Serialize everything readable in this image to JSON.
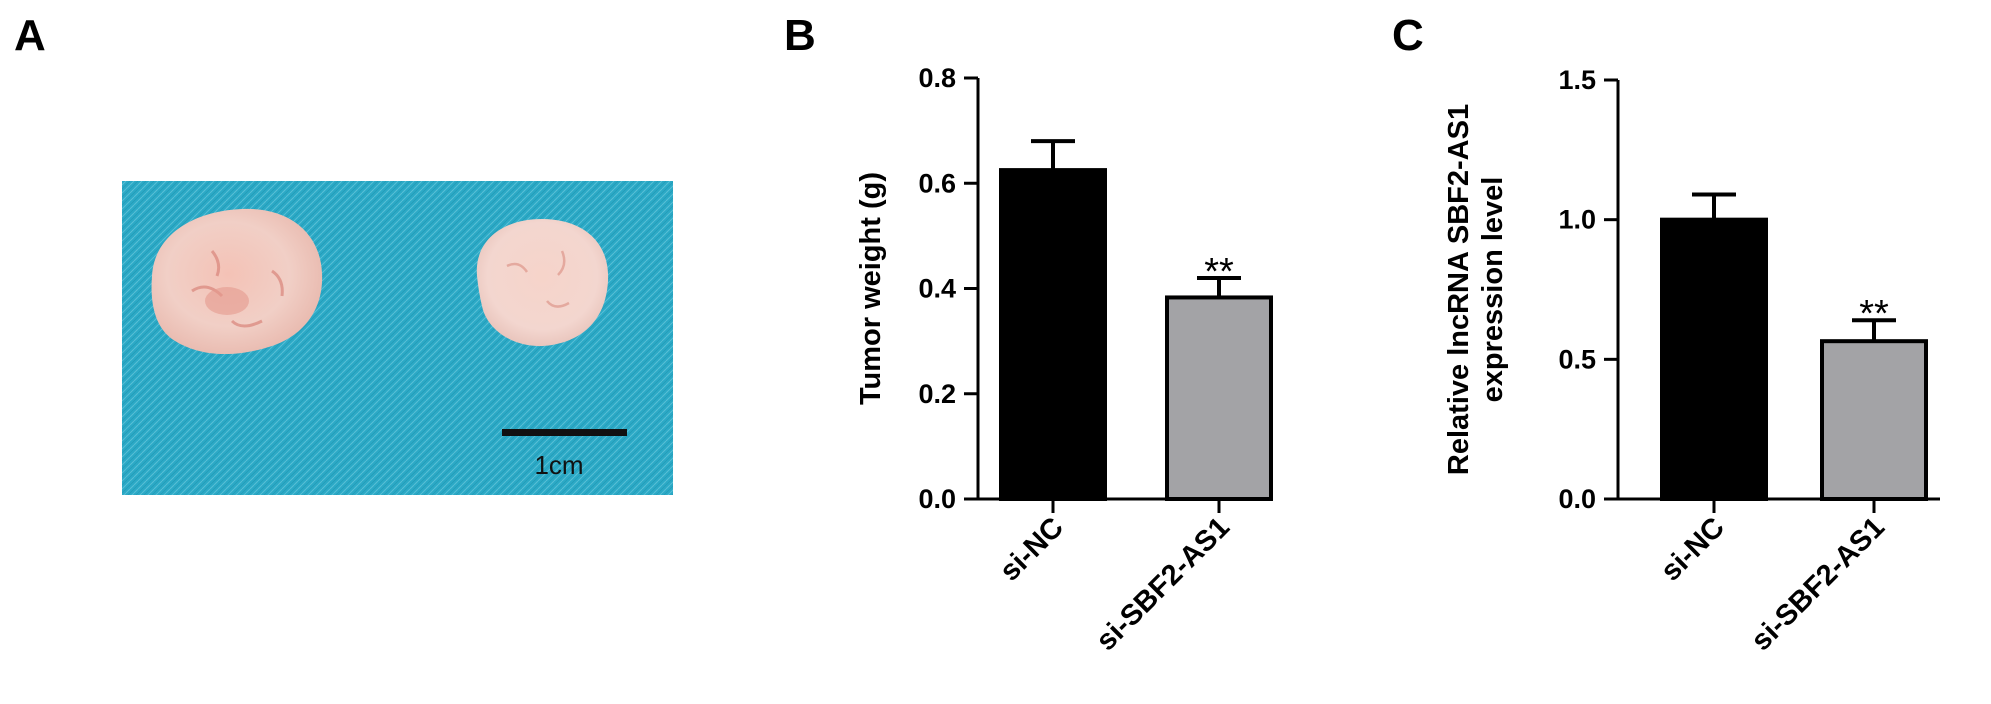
{
  "panels": {
    "a": {
      "letter": "A",
      "scale_bar_label": "1cm"
    },
    "b": {
      "letter": "B"
    },
    "c": {
      "letter": "C"
    }
  },
  "colors": {
    "cloth": "#2ba9c6",
    "tissue": "#f2cbc2",
    "bar_control": "#000000",
    "bar_treatment": "#a3a3a6"
  },
  "chart_data": [
    {
      "type": "bar",
      "panel": "B",
      "categories": [
        "si-NC",
        "si-SBF2-AS1"
      ],
      "values": [
        0.625,
        0.383
      ],
      "errors": [
        0.055,
        0.037
      ],
      "annotations": [
        "",
        "**"
      ],
      "ylabel": "Tumor weight (g)",
      "ylim": [
        0,
        0.8
      ],
      "yticks": [
        "0.0",
        "0.2",
        "0.4",
        "0.6",
        "0.8"
      ],
      "colors": [
        "#000000",
        "#a3a3a6"
      ]
    },
    {
      "type": "bar",
      "panel": "C",
      "categories": [
        "si-NC",
        "si-SBF2-AS1"
      ],
      "values": [
        1.0,
        0.565
      ],
      "errors": [
        0.09,
        0.075
      ],
      "annotations": [
        "",
        "**"
      ],
      "ylabel": [
        "Relative lncRNA SBF2-AS1",
        "expression level"
      ],
      "ylim": [
        0,
        1.5
      ],
      "yticks": [
        "0.0",
        "0.5",
        "1.0",
        "1.5"
      ],
      "colors": [
        "#000000",
        "#a3a3a6"
      ]
    }
  ]
}
